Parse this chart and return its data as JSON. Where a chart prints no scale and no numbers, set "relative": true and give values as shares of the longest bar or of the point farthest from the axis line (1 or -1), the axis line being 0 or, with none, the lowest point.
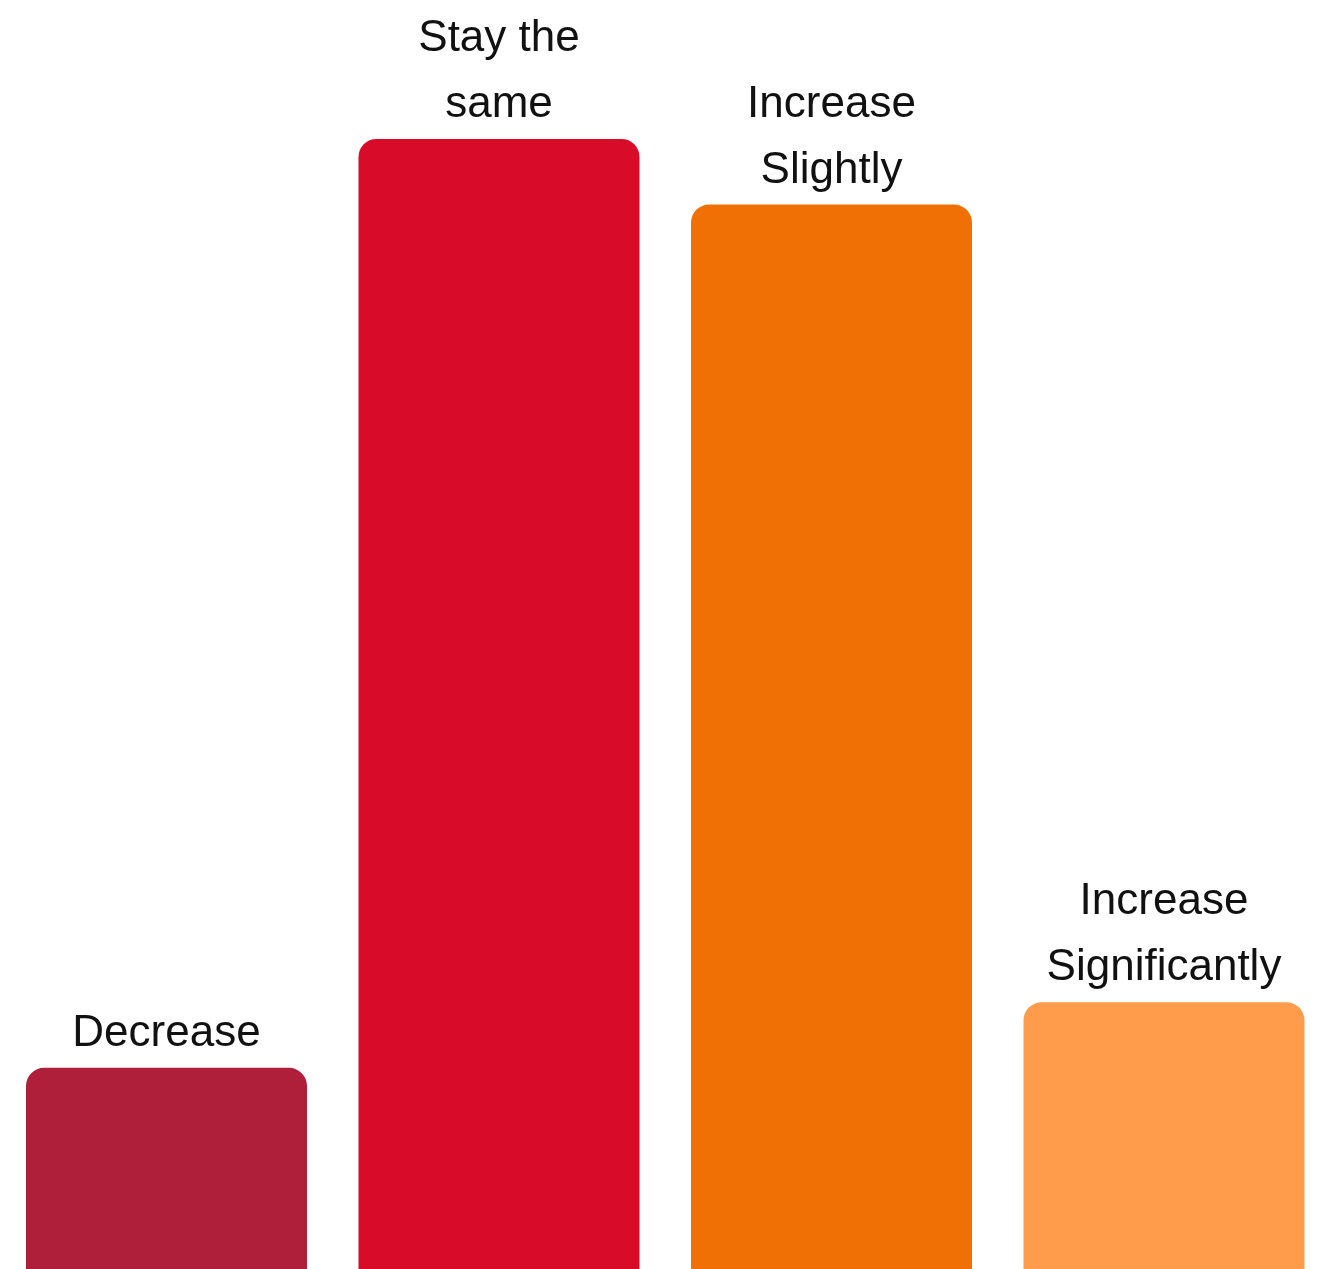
{
  "chart_data": {
    "type": "bar",
    "relative": true,
    "categories": [
      "Decrease",
      "Stay the same",
      "Increase Slightly",
      "Increase Significantly"
    ],
    "values": [
      0.178,
      1,
      0.942,
      0.236
    ],
    "colors": [
      "#b01f3a",
      "#d80b28",
      "#f07005",
      "#ff9c4c"
    ]
  }
}
